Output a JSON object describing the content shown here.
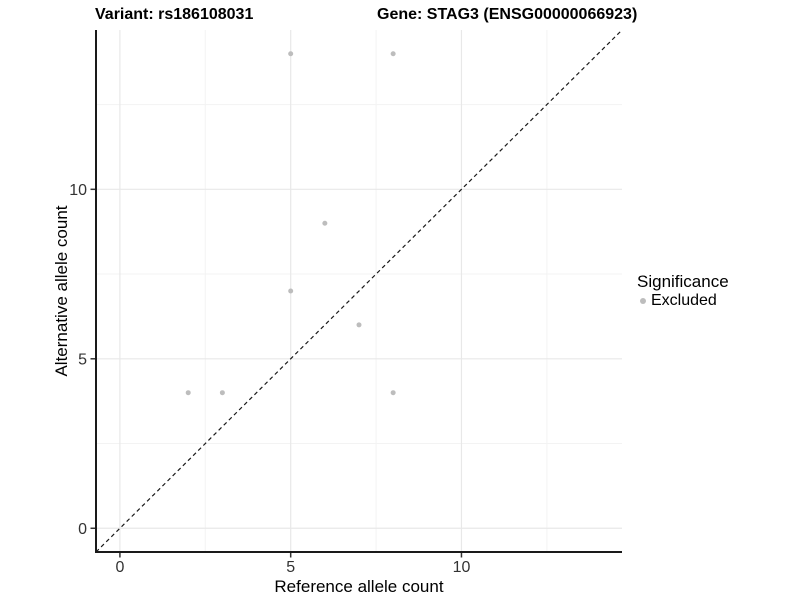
{
  "header": {
    "variant_title": "Variant: rs186108031",
    "gene_title": "Gene: STAG3 (ENSG00000066923)"
  },
  "axes": {
    "x_label": "Reference allele count",
    "y_label": "Alternative allele count"
  },
  "legend": {
    "title": "Significance",
    "items": [
      {
        "label": "Excluded",
        "color": "#bdbdbd",
        "marker": "point"
      }
    ]
  },
  "colors": {
    "point": "#bdbdbd",
    "grid_major": "#e8e8e8",
    "grid_minor": "#f3f3f3",
    "axis_line": "#1a1a1a",
    "tick_mark": "#333333",
    "tick_label": "#333333",
    "reference_line": "#1a1a1a",
    "background": "#ffffff"
  },
  "chart_data": {
    "type": "scatter",
    "title": "Variant: rs186108031 — Gene: STAG3 (ENSG00000066923)",
    "xlabel": "Reference allele count",
    "ylabel": "Alternative allele count",
    "xlim": [
      -0.7,
      14.7
    ],
    "ylim": [
      -0.7,
      14.7
    ],
    "x_major_ticks": [
      0,
      5,
      10
    ],
    "y_major_ticks": [
      0,
      5,
      10
    ],
    "x_minor_gridlines": [
      2.5,
      7.5,
      12.5
    ],
    "y_minor_gridlines": [
      2.5,
      7.5,
      12.5
    ],
    "grid": true,
    "legend_position": "right",
    "series": [
      {
        "name": "Excluded",
        "color": "#bdbdbd",
        "points": [
          [
            5,
            14
          ],
          [
            8,
            14
          ],
          [
            6,
            9
          ],
          [
            5,
            7
          ],
          [
            7,
            6
          ],
          [
            2,
            4
          ],
          [
            3,
            4
          ],
          [
            8,
            4
          ]
        ]
      }
    ],
    "reference_line": {
      "style": "dashed",
      "slope": 1,
      "intercept": 0
    }
  }
}
